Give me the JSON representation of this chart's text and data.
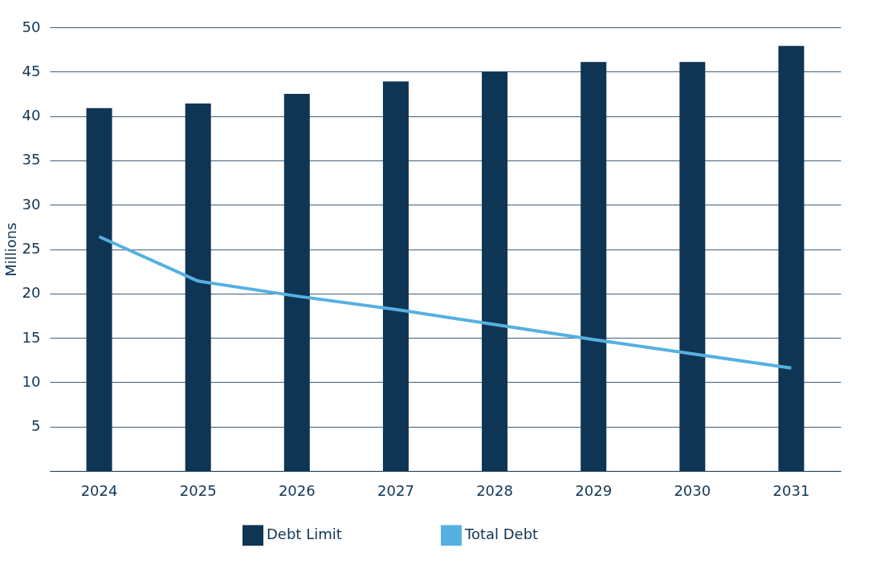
{
  "chart_data": {
    "type": "bar",
    "ylabel": "Millions",
    "categories": [
      "2024",
      "2025",
      "2026",
      "2027",
      "2028",
      "2029",
      "2030",
      "2031"
    ],
    "series": [
      {
        "name": "Debt Limit",
        "color": "#0f3554",
        "values": [
          40.9,
          41.4,
          42.5,
          43.9,
          45.0,
          46.1,
          46.1,
          47.9
        ]
      },
      {
        "name": "Total Debt",
        "type": "line",
        "line_style": "solid",
        "color": "#56b0e0",
        "values": [
          26.4,
          21.4,
          19.7,
          18.2,
          16.5,
          14.8,
          13.2,
          11.6
        ]
      }
    ],
    "ylim": [
      0,
      50
    ],
    "yticks": [
      {
        "value": 0,
        "label": null
      },
      5,
      10,
      15,
      20,
      25,
      30,
      35,
      40,
      45,
      50
    ],
    "grid": "y",
    "legend": "bottom"
  }
}
